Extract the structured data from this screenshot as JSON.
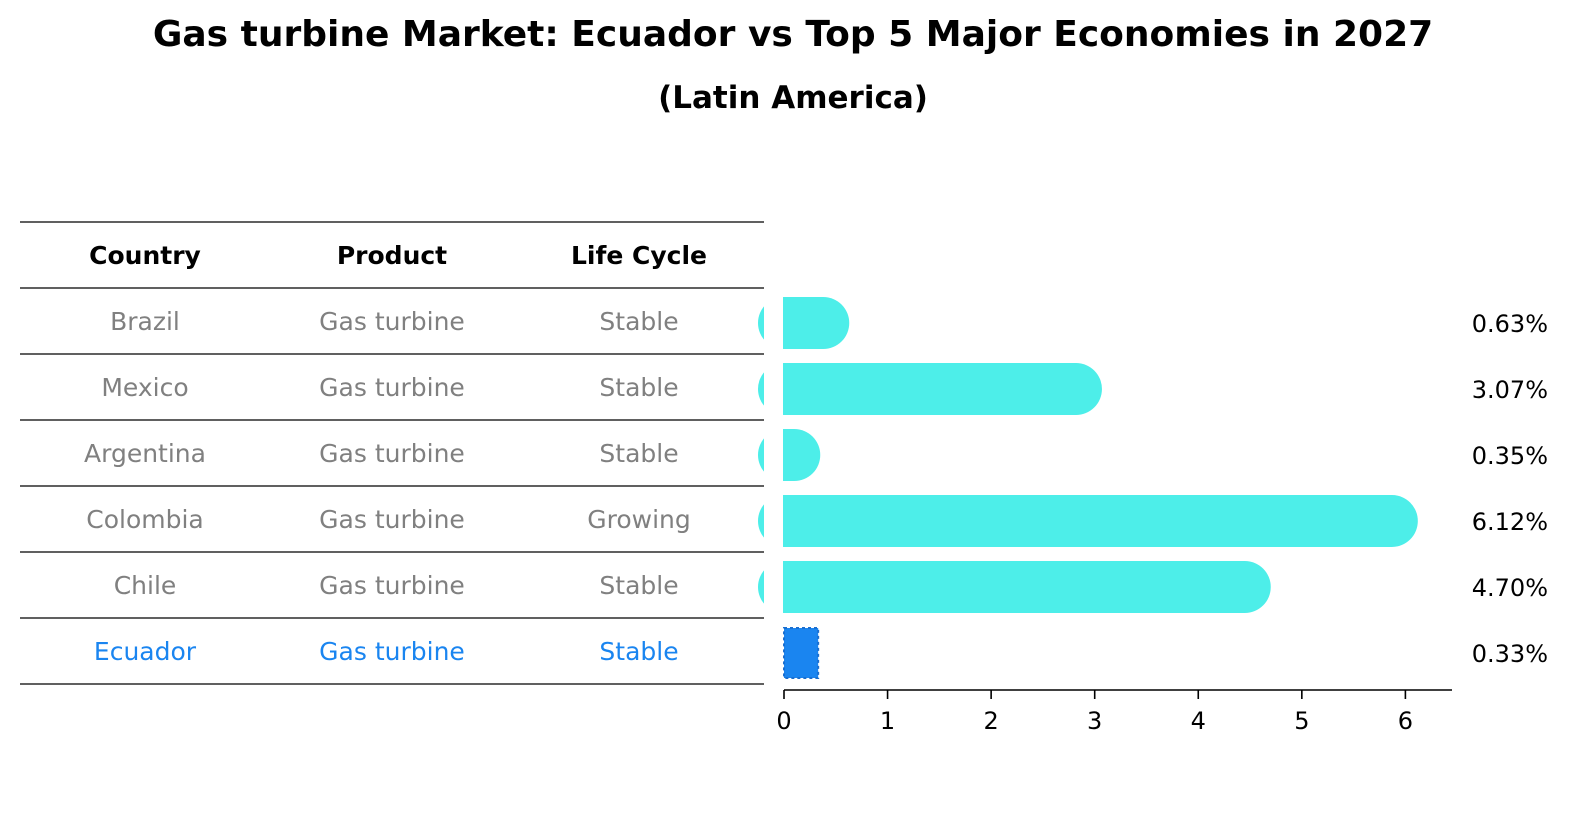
{
  "title": "Gas turbine Market: Ecuador vs Top 5 Major Economies in 2027",
  "subtitle": "(Latin America)",
  "table": {
    "headers": [
      "Country",
      "Product",
      "Life Cycle"
    ],
    "rows": [
      {
        "country": "Brazil",
        "product": "Gas turbine",
        "life_cycle": "Stable",
        "highlight": false
      },
      {
        "country": "Mexico",
        "product": "Gas turbine",
        "life_cycle": "Stable",
        "highlight": false
      },
      {
        "country": "Argentina",
        "product": "Gas turbine",
        "life_cycle": "Stable",
        "highlight": false
      },
      {
        "country": "Colombia",
        "product": "Gas turbine",
        "life_cycle": "Growing",
        "highlight": false
      },
      {
        "country": "Chile",
        "product": "Gas turbine",
        "life_cycle": "Stable",
        "highlight": false
      },
      {
        "country": "Ecuador",
        "product": "Gas turbine",
        "life_cycle": "Stable",
        "highlight": true
      }
    ]
  },
  "colors": {
    "bar": "#4deee9",
    "highlight_bar": "#1a85f0",
    "row_text": "#808080",
    "highlight_text": "#1a85f0",
    "rule": "#000000"
  },
  "chart_data": {
    "type": "bar",
    "orientation": "horizontal",
    "categories": [
      "Brazil",
      "Mexico",
      "Argentina",
      "Colombia",
      "Chile",
      "Ecuador"
    ],
    "values": [
      0.63,
      3.07,
      0.35,
      6.12,
      4.7,
      0.33
    ],
    "value_labels": [
      "0.63%",
      "3.07%",
      "0.35%",
      "6.12%",
      "4.70%",
      "0.33%"
    ],
    "xlim": [
      0,
      6.45
    ],
    "xticks": [
      0,
      1,
      2,
      3,
      4,
      5,
      6
    ],
    "grid": false,
    "highlight_category": "Ecuador"
  }
}
